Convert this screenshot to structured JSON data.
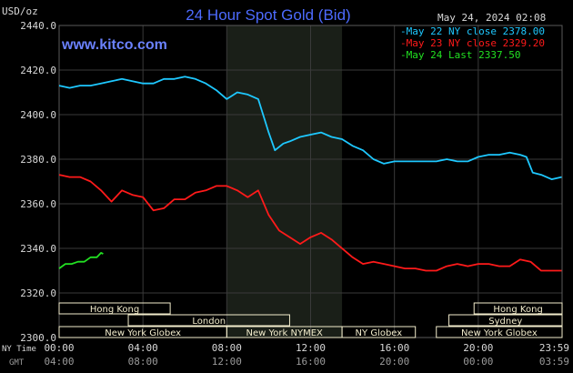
{
  "chart_data": {
    "type": "line",
    "title": "24 Hour Spot Gold (Bid)",
    "ylabel": "USD/oz",
    "watermark": "www.kitco.com",
    "date_stamp": "May 24, 2024 02:08",
    "ylim": [
      2300,
      2440
    ],
    "yticks": [
      "2440.0",
      "2420.0",
      "2400.0",
      "2380.0",
      "2360.0",
      "2340.0",
      "2320.0",
      "2300.0"
    ],
    "x_hours_range": [
      0,
      24
    ],
    "xticks_ny": [
      "00:00",
      "04:00",
      "08:00",
      "12:00",
      "16:00",
      "20:00",
      "23:59"
    ],
    "xticks_gmt": [
      "04:00",
      "08:00",
      "12:00",
      "16:00",
      "20:00",
      "00:00",
      "03:59"
    ],
    "x_row_labels": {
      "ny": "NY Time",
      "gmt": "GMT"
    },
    "legend_position": "top-right",
    "grid": true,
    "highlight_hours": [
      8.0,
      13.5
    ],
    "colors": {
      "background": "#000000",
      "grid": "#3a3a3a",
      "axes": "#d8d8d8",
      "title": "#4d6bff",
      "watermark": "#6b82ff",
      "highlight": "#1a1f18",
      "session_box": "#f2eccc"
    },
    "sessions": [
      {
        "label": "Hong Kong",
        "start": 0.0,
        "end": 5.3,
        "row": 0
      },
      {
        "label": "Hong Kong",
        "start": 19.8,
        "end": 24.0,
        "row": 0
      },
      {
        "label": "London",
        "start": 3.3,
        "end": 11.0,
        "row": 1
      },
      {
        "label": "Sydney",
        "start": 18.6,
        "end": 24.0,
        "row": 1
      },
      {
        "label": "New York Globex",
        "start": 0.0,
        "end": 8.0,
        "row": 2
      },
      {
        "label": "New York NYMEX",
        "start": 8.0,
        "end": 13.5,
        "row": 2
      },
      {
        "label": "NY Globex",
        "start": 13.5,
        "end": 17.0,
        "row": 2
      },
      {
        "label": "New York Globex",
        "start": 18.0,
        "end": 24.0,
        "row": 2
      }
    ],
    "series": [
      {
        "name": "May 22 NY close 2378.00",
        "color": "#1ec8ff",
        "x": [
          0.0,
          0.5,
          1.0,
          1.5,
          2.0,
          2.5,
          3.0,
          3.5,
          4.0,
          4.5,
          5.0,
          5.5,
          6.0,
          6.5,
          7.0,
          7.5,
          8.0,
          8.5,
          9.0,
          9.5,
          9.8,
          10.0,
          10.3,
          10.7,
          11.0,
          11.5,
          12.0,
          12.5,
          13.0,
          13.5,
          14.0,
          14.5,
          15.0,
          15.5,
          16.0,
          16.5,
          17.0,
          17.5,
          18.0,
          18.5,
          19.0,
          19.5,
          20.0,
          20.5,
          21.0,
          21.5,
          22.0,
          22.3,
          22.6,
          23.0,
          23.5,
          23.98
        ],
        "y": [
          2413,
          2412,
          2413,
          2413,
          2414,
          2415,
          2416,
          2415,
          2414,
          2414,
          2416,
          2416,
          2417,
          2416,
          2414,
          2411,
          2407,
          2410,
          2409,
          2407,
          2398,
          2392,
          2384,
          2387,
          2388,
          2390,
          2391,
          2392,
          2390,
          2389,
          2386,
          2384,
          2380,
          2378,
          2379,
          2379,
          2379,
          2379,
          2379,
          2380,
          2379,
          2379,
          2381,
          2382,
          2382,
          2383,
          2382,
          2381,
          2374,
          2373,
          2371,
          2372
        ]
      },
      {
        "name": "May 23 NY close 2329.20",
        "color": "#ff1a1a",
        "x": [
          0.0,
          0.5,
          1.0,
          1.5,
          2.0,
          2.5,
          3.0,
          3.5,
          4.0,
          4.5,
          5.0,
          5.5,
          6.0,
          6.5,
          7.0,
          7.5,
          8.0,
          8.5,
          9.0,
          9.5,
          10.0,
          10.5,
          11.0,
          11.5,
          12.0,
          12.5,
          13.0,
          13.5,
          14.0,
          14.5,
          15.0,
          15.5,
          16.0,
          16.5,
          17.0,
          17.5,
          18.0,
          18.5,
          19.0,
          19.5,
          20.0,
          20.5,
          21.0,
          21.5,
          22.0,
          22.5,
          23.0,
          23.5,
          23.98
        ],
        "y": [
          2373,
          2372,
          2372,
          2370,
          2366,
          2361,
          2366,
          2364,
          2363,
          2357,
          2358,
          2362,
          2362,
          2365,
          2366,
          2368,
          2368,
          2366,
          2363,
          2366,
          2355,
          2348,
          2345,
          2342,
          2345,
          2347,
          2344,
          2340,
          2336,
          2333,
          2334,
          2333,
          2332,
          2331,
          2331,
          2330,
          2330,
          2332,
          2333,
          2332,
          2333,
          2333,
          2332,
          2332,
          2335,
          2334,
          2330,
          2330,
          2330
        ]
      },
      {
        "name": "May 24 Last 2337.50",
        "color": "#22e022",
        "x": [
          0.0,
          0.3,
          0.6,
          0.9,
          1.2,
          1.5,
          1.8,
          2.0,
          2.1
        ],
        "y": [
          2331,
          2333,
          2333,
          2334,
          2334,
          2336,
          2336,
          2338,
          2337.5
        ]
      }
    ]
  }
}
